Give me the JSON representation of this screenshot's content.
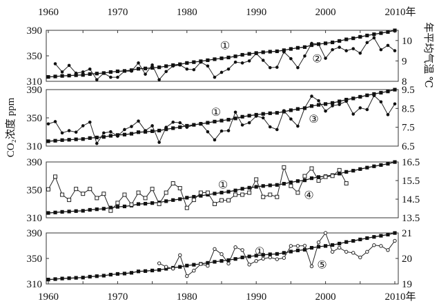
{
  "chart_data": {
    "type": "line",
    "x_axis": {
      "range": [
        1960,
        2010
      ],
      "tick_labels": [
        "1960",
        "1970",
        "1980",
        "1990",
        "2000",
        "2010年"
      ],
      "tick_values": [
        1960,
        1970,
        1980,
        1990,
        2000,
        2010
      ]
    },
    "left_axis_label": "CO₂浓度 ppm",
    "right_axis_label": "年平均气温 ℃",
    "co2": {
      "name": "①",
      "years": [
        1960,
        1961,
        1962,
        1963,
        1964,
        1965,
        1966,
        1967,
        1968,
        1969,
        1970,
        1971,
        1972,
        1973,
        1974,
        1975,
        1976,
        1977,
        1978,
        1979,
        1980,
        1981,
        1982,
        1983,
        1984,
        1985,
        1986,
        1987,
        1988,
        1989,
        1990,
        1991,
        1992,
        1993,
        1994,
        1995,
        1996,
        1997,
        1998,
        1999,
        2000,
        2001,
        2002,
        2003,
        2004,
        2005,
        2006,
        2007,
        2008,
        2009,
        2010
      ],
      "values": [
        316.9,
        317.6,
        318.5,
        319.0,
        319.6,
        320.0,
        321.4,
        322.2,
        323.0,
        324.6,
        325.7,
        326.3,
        327.5,
        329.7,
        330.2,
        331.1,
        332.0,
        333.8,
        335.4,
        336.8,
        338.8,
        340.1,
        341.5,
        343.1,
        344.7,
        346.1,
        347.4,
        349.2,
        351.6,
        353.1,
        354.4,
        355.6,
        356.5,
        357.1,
        358.8,
        360.8,
        362.6,
        363.7,
        366.7,
        368.4,
        369.6,
        371.1,
        373.3,
        375.8,
        377.5,
        379.8,
        381.9,
        383.8,
        385.6,
        387.4,
        389.9
      ]
    },
    "panels": [
      {
        "left_ylim": [
          310,
          390
        ],
        "left_ticks": [
          "310",
          "350",
          "390"
        ],
        "right_ylim": [
          8,
          10.5
        ],
        "right_ticks": [
          "8",
          "9",
          "10"
        ],
        "right_tick_values": [
          8,
          9,
          10
        ],
        "co2_label": {
          "text": "①",
          "x": 1985.5,
          "y": 367
        },
        "temp": {
          "name": "②",
          "marker": "dot",
          "label": {
            "text": "②",
            "x": 1998.8,
            "y": 346
          },
          "years": [
            1961,
            1962,
            1963,
            1964,
            1965,
            1966,
            1967,
            1968,
            1969,
            1970,
            1971,
            1972,
            1973,
            1974,
            1975,
            1976,
            1977,
            1978,
            1979,
            1980,
            1981,
            1982,
            1983,
            1984,
            1985,
            1986,
            1987,
            1988,
            1989,
            1990,
            1991,
            1992,
            1993,
            1994,
            1995,
            1996,
            1997,
            1998,
            1999,
            2000,
            2001,
            2002,
            2003,
            2004,
            2005,
            2006,
            2007,
            2008,
            2009,
            2010
          ],
          "values": [
            8.86,
            8.46,
            8.78,
            8.4,
            8.46,
            8.6,
            8.08,
            8.4,
            8.2,
            8.2,
            8.5,
            8.5,
            8.9,
            8.35,
            8.8,
            8.08,
            8.48,
            8.75,
            8.8,
            8.6,
            8.57,
            8.94,
            8.75,
            8.2,
            8.44,
            8.6,
            8.94,
            8.9,
            9.0,
            9.36,
            9.03,
            8.67,
            8.69,
            9.44,
            9.11,
            8.67,
            9.24,
            9.86,
            9.82,
            9.13,
            9.55,
            9.67,
            9.5,
            9.6,
            9.38,
            9.9,
            10.13,
            9.55,
            9.76,
            9.5
          ]
        }
      },
      {
        "left_ylim": [
          310,
          390
        ],
        "left_ticks": [
          "310",
          "350",
          "390"
        ],
        "right_ylim": [
          6.5,
          9.5
        ],
        "right_ticks": [
          "6.5",
          "7.5",
          "8.5",
          "9.5"
        ],
        "right_tick_values": [
          6.5,
          7.5,
          8.5,
          9.5
        ],
        "co2_label": {
          "text": "①",
          "x": 1984.2,
          "y": 359
        },
        "temp": {
          "name": "③",
          "marker": "dot",
          "label": {
            "text": "③",
            "x": 1998.3,
            "y": 349
          },
          "years": [
            1960,
            1961,
            1962,
            1963,
            1964,
            1965,
            1966,
            1967,
            1968,
            1969,
            1970,
            1971,
            1972,
            1973,
            1974,
            1975,
            1976,
            1977,
            1978,
            1979,
            1980,
            1981,
            1982,
            1983,
            1984,
            1985,
            1986,
            1987,
            1988,
            1989,
            1990,
            1991,
            1992,
            1993,
            1994,
            1995,
            1996,
            1997,
            1998,
            1999,
            2000,
            2001,
            2002,
            2003,
            2004,
            2005,
            2006,
            2007,
            2008,
            2009,
            2010
          ],
          "values": [
            7.68,
            7.8,
            7.2,
            7.32,
            7.24,
            7.58,
            7.77,
            6.64,
            7.2,
            7.26,
            7.03,
            7.38,
            7.54,
            7.83,
            7.32,
            7.58,
            6.7,
            7.5,
            7.77,
            7.74,
            7.5,
            7.62,
            7.7,
            7.26,
            6.83,
            7.3,
            7.32,
            8.3,
            7.62,
            7.74,
            8.09,
            8.0,
            7.52,
            7.38,
            8.38,
            7.94,
            7.56,
            8.53,
            9.15,
            8.91,
            8.36,
            8.64,
            8.71,
            8.88,
            8.2,
            8.53,
            8.44,
            9.18,
            8.85,
            8.17,
            8.74
          ]
        }
      },
      {
        "left_ylim": [
          310,
          390
        ],
        "left_ticks": [
          "310",
          "350",
          "390"
        ],
        "right_ylim": [
          13.5,
          16.5
        ],
        "right_ticks": [
          "13.5",
          "14.5",
          "15.5",
          "16.5"
        ],
        "right_tick_values": [
          13.5,
          14.5,
          15.5,
          16.5
        ],
        "co2_label": {
          "text": "①",
          "x": 1985.2,
          "y": 358
        },
        "temp": {
          "name": "④",
          "marker": "open-square",
          "label": {
            "text": "④",
            "x": 1997.6,
            "y": 343
          },
          "years": [
            1960,
            1961,
            1962,
            1963,
            1964,
            1965,
            1966,
            1967,
            1968,
            1969,
            1970,
            1971,
            1972,
            1973,
            1974,
            1975,
            1976,
            1977,
            1978,
            1979,
            1980,
            1981,
            1982,
            1983,
            1984,
            1985,
            1986,
            1987,
            1988,
            1989,
            1990,
            1991,
            1992,
            1993,
            1994,
            1995,
            1996,
            1997,
            1998,
            1999,
            2000,
            2001,
            2002,
            2003
          ],
          "values": [
            15.03,
            15.71,
            14.74,
            14.46,
            15.05,
            14.79,
            15.05,
            14.56,
            14.79,
            13.88,
            14.3,
            14.74,
            14.21,
            14.85,
            14.56,
            15.05,
            14.24,
            14.85,
            15.35,
            15.09,
            14.03,
            14.46,
            14.85,
            14.85,
            14.24,
            14.44,
            14.44,
            14.74,
            14.74,
            14.85,
            15.56,
            14.62,
            14.74,
            14.62,
            16.21,
            15.21,
            14.85,
            15.74,
            16.15,
            15.5,
            15.7,
            15.75,
            16.06,
            15.35
          ]
        }
      },
      {
        "left_ylim": [
          310,
          390
        ],
        "left_ticks": [
          "310",
          "350",
          "390"
        ],
        "right_ylim": [
          19,
          21
        ],
        "right_ticks": [
          "19",
          "20",
          "21"
        ],
        "right_tick_values": [
          19,
          20,
          21
        ],
        "co2_label": {
          "text": "①",
          "x": 1990.5,
          "y": 362
        },
        "temp": {
          "name": "⑤",
          "marker": "open-circle",
          "label": {
            "text": "⑤",
            "x": 1999.5,
            "y": 341
          },
          "years": [
            1976,
            1977,
            1978,
            1979,
            1980,
            1981,
            1982,
            1983,
            1984,
            1985,
            1986,
            1987,
            1988,
            1989,
            1990,
            1991,
            1992,
            1993,
            1994,
            1995,
            1996,
            1997,
            1998,
            1999,
            2000,
            2001,
            2002,
            2003,
            2004,
            2005,
            2006,
            2007,
            2008,
            2009,
            2010
          ],
          "values": [
            19.81,
            19.67,
            19.6,
            20.13,
            19.31,
            19.52,
            19.78,
            19.71,
            20.37,
            20.17,
            19.8,
            20.44,
            20.33,
            19.76,
            19.9,
            19.99,
            20.04,
            19.97,
            20.02,
            20.49,
            20.49,
            20.5,
            19.69,
            20.63,
            21.0,
            20.26,
            20.42,
            20.26,
            20.22,
            20.04,
            20.26,
            20.52,
            20.49,
            20.33,
            20.69
          ]
        }
      }
    ]
  }
}
